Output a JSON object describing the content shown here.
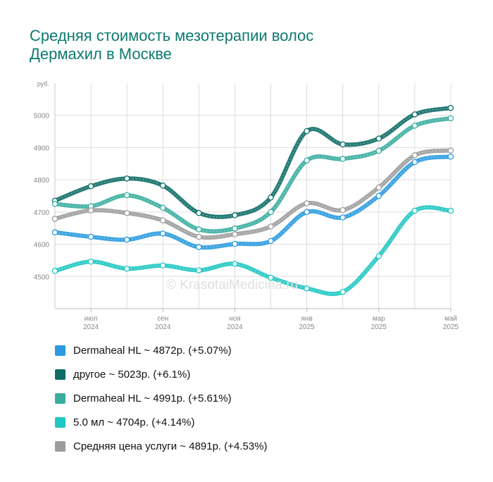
{
  "title": {
    "line1": "Средняя стоимость мезотерапии волос",
    "line2": "Дермахил в Москве"
  },
  "watermark": "© KrasotaiMedicina.ru",
  "colors": {
    "title": "#0d7a6f",
    "grid": "#dddddd",
    "axis_text": "#888888"
  },
  "chart_data": {
    "type": "line",
    "unit_label": "руб.",
    "x": [
      "2024-06",
      "2024-07",
      "2024-08",
      "2024-09",
      "2024-10",
      "2024-11",
      "2024-12",
      "2025-01",
      "2025-02",
      "2025-03",
      "2025-04",
      "2025-05"
    ],
    "x_ticks": [
      {
        "x": "2024-07",
        "month": "июл",
        "year": "2024"
      },
      {
        "x": "2024-09",
        "month": "сен",
        "year": "2024"
      },
      {
        "x": "2024-11",
        "month": "ноя",
        "year": "2024"
      },
      {
        "x": "2025-01",
        "month": "янв",
        "year": "2025"
      },
      {
        "x": "2025-03",
        "month": "мар",
        "year": "2025"
      },
      {
        "x": "2025-05",
        "month": "май",
        "year": "2025"
      }
    ],
    "y_ticks": [
      4500,
      4600,
      4700,
      4800,
      4900,
      5000
    ],
    "ylim": [
      4400,
      5100
    ],
    "grid": true,
    "series": [
      {
        "name": "Dermaheal HL",
        "color": "#2a9be0",
        "legend": "Dermaheal HL ~ 4872р. (+5.07%)",
        "values": [
          4637,
          4623,
          4614,
          4633,
          4591,
          4601,
          4610,
          4700,
          4683,
          4750,
          4855,
          4872
        ]
      },
      {
        "name": "другое",
        "color": "#0e6d66",
        "legend": "другое ~ 5023р. (+6.1%)",
        "values": [
          4735,
          4780,
          4804,
          4782,
          4697,
          4690,
          4745,
          4951,
          4910,
          4928,
          5003,
          5023
        ]
      },
      {
        "name": "Dermaheal HL",
        "color": "#3aaea0",
        "legend": "Dermaheal HL ~ 4991р. (+5.61%)",
        "values": [
          4725,
          4718,
          4752,
          4713,
          4646,
          4649,
          4700,
          4860,
          4865,
          4890,
          4968,
          4991
        ]
      },
      {
        "name": "5.0 мл",
        "color": "#1fc8c3",
        "legend": "5.0 мл ~ 4704р. (+4.14%)",
        "values": [
          4517,
          4546,
          4524,
          4534,
          4519,
          4539,
          4496,
          4463,
          4452,
          4563,
          4704,
          4704
        ]
      },
      {
        "name": "Средняя цена услуги",
        "color": "#9d9d9d",
        "legend": "Средняя цена услуги ~ 4891р. (+4.53%)",
        "values": [
          4679,
          4705,
          4697,
          4674,
          4623,
          4631,
          4655,
          4727,
          4706,
          4776,
          4876,
          4891
        ]
      }
    ]
  }
}
